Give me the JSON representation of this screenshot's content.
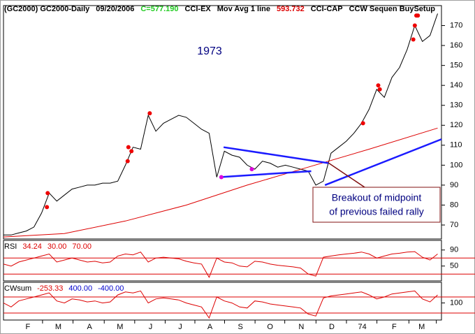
{
  "header": [
    {
      "text": "(GC2000) GC2000-Daily",
      "color": "#000000"
    },
    {
      "text": "09/20/2006",
      "color": "#000000"
    },
    {
      "text": "C=577.190",
      "color": "#22cc22"
    },
    {
      "text": "CCI-EX",
      "color": "#000000"
    },
    {
      "text": "Mov Avg 1 line",
      "color": "#000000"
    },
    {
      "text": "593.732",
      "color": "#dd0000"
    },
    {
      "text": "CCI-CAP",
      "color": "#000000"
    },
    {
      "text": "CCW Sequen BuySetup",
      "color": "#000000"
    }
  ],
  "chart_data": [
    {
      "type": "line",
      "annotations": [
        "1973"
      ],
      "callout": [
        "Breakout of midpoint",
        "of previous failed rally"
      ],
      "xlim": [
        0,
        57.5
      ],
      "ylim": [
        63,
        180
      ],
      "yticks": [
        70,
        80,
        90,
        100,
        110,
        120,
        130,
        140,
        150,
        160,
        170
      ],
      "xticks": [
        {
          "value": 3.2,
          "label": "F"
        },
        {
          "value": 7.2,
          "label": "M"
        },
        {
          "value": 11.3,
          "label": "A"
        },
        {
          "value": 15.3,
          "label": "M"
        },
        {
          "value": 19.3,
          "label": "J"
        },
        {
          "value": 23.2,
          "label": "J"
        },
        {
          "value": 27.1,
          "label": "A"
        },
        {
          "value": 31.1,
          "label": "S"
        },
        {
          "value": 35,
          "label": "O"
        },
        {
          "value": 39.1,
          "label": "N"
        },
        {
          "value": 43.1,
          "label": "D"
        },
        {
          "value": 47.1,
          "label": "74"
        },
        {
          "value": 51.3,
          "label": "F"
        },
        {
          "value": 54.9,
          "label": "M"
        }
      ],
      "series": [
        {
          "color": "#000000",
          "values": [
            65,
            65,
            66,
            67,
            69,
            76,
            86,
            82,
            85,
            88,
            89,
            90,
            90,
            91,
            91,
            92,
            100,
            109,
            108,
            125,
            117,
            121,
            123,
            125,
            124,
            121,
            118,
            116,
            94,
            107,
            105,
            104,
            100,
            98,
            102,
            101,
            99,
            100,
            99,
            98,
            97,
            90,
            92,
            106,
            109,
            112,
            116,
            121,
            128,
            138,
            134,
            144,
            149,
            158,
            170,
            162,
            165,
            176
          ]
        },
        {
          "color": "#dd0000",
          "x": [
            0,
            8,
            16,
            24,
            32,
            40,
            48,
            57
          ],
          "values": [
            64,
            65.7,
            72,
            80,
            90,
            99,
            108,
            118.6
          ]
        }
      ],
      "trendlines": [
        {
          "color": "#1a1aff",
          "x": [
            28.9,
            42.7
          ],
          "y": [
            109,
            101
          ]
        },
        {
          "color": "#1a1aff",
          "x": [
            28.4,
            40.4
          ],
          "y": [
            94,
            97
          ]
        },
        {
          "color": "#1a1aff",
          "x": [
            42.2,
            57.5
          ],
          "y": [
            90,
            113
          ]
        }
      ],
      "signals": [
        {
          "color": "#ee0000",
          "x": [
            5.7,
            5.8,
            16.3,
            16.4,
            16.8,
            19.2,
            47.2,
            49.2,
            49.4,
            53.8,
            54,
            54.2,
            54.4
          ],
          "y": [
            79,
            86,
            102,
            109,
            107,
            126,
            121,
            140,
            138,
            163,
            170,
            175,
            175
          ]
        },
        {
          "color": "#dd00dd",
          "x": [
            28.6,
            32.6
          ],
          "y": [
            94,
            98
          ]
        }
      ]
    },
    {
      "type": "line",
      "title": "RSI",
      "current": 34.24,
      "levels": [
        {
          "value": 30,
          "label": "30.00"
        },
        {
          "value": 70,
          "label": "70.00"
        }
      ],
      "ylim": [
        13,
        114
      ],
      "yticks": [
        50,
        90
      ],
      "series": [
        {
          "color": "#dd0000",
          "values": [
            55,
            50,
            60,
            65,
            70,
            75,
            80,
            60,
            65,
            70,
            65,
            60,
            62,
            58,
            60,
            75,
            80,
            78,
            85,
            60,
            70,
            72,
            70,
            68,
            62,
            58,
            55,
            22,
            70,
            60,
            58,
            50,
            48,
            62,
            60,
            55,
            52,
            50,
            48,
            45,
            30,
            25,
            72,
            75,
            78,
            80,
            82,
            85,
            80,
            70,
            75,
            80,
            82,
            85,
            86,
            72,
            65,
            80
          ]
        }
      ]
    },
    {
      "type": "line",
      "title": "CWsum",
      "current": -253.33,
      "levels": [
        {
          "value": 400,
          "label": "400.00"
        },
        {
          "value": -400,
          "label": "-400.00"
        }
      ],
      "ylim": [
        -750,
        1130
      ],
      "yticks": [
        100
      ],
      "series": [
        {
          "color": "#dd0000",
          "values": [
            100,
            -100,
            200,
            300,
            400,
            500,
            600,
            200,
            100,
            300,
            250,
            150,
            200,
            100,
            150,
            500,
            650,
            600,
            700,
            100,
            300,
            350,
            300,
            250,
            100,
            0,
            -100,
            -650,
            400,
            200,
            100,
            -100,
            -150,
            200,
            150,
            50,
            0,
            -50,
            -100,
            -150,
            -450,
            -550,
            350,
            450,
            500,
            550,
            600,
            650,
            500,
            300,
            400,
            550,
            600,
            650,
            700,
            300,
            150,
            500
          ]
        }
      ]
    }
  ]
}
